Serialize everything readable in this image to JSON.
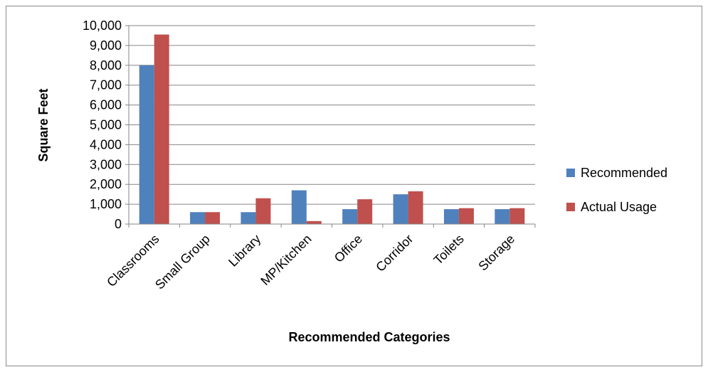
{
  "chart_data": {
    "type": "bar",
    "categories": [
      "Classrooms",
      "Small Group",
      "Library",
      "MP/Kitchen",
      "Office",
      "Corridor",
      "Toilets",
      "Storage"
    ],
    "series": [
      {
        "name": "Recommended",
        "values": [
          8000,
          600,
          600,
          1700,
          750,
          1500,
          750,
          750
        ],
        "color": "#4f81bd"
      },
      {
        "name": "Actual Usage",
        "values": [
          9550,
          600,
          1300,
          150,
          1250,
          1650,
          800,
          800
        ],
        "color": "#c0504d"
      }
    ],
    "title": "",
    "xlabel": "Recommended Categories",
    "ylabel": "Square Feet",
    "ylim": [
      0,
      10000
    ],
    "yticks": [
      "0",
      "1,000",
      "2,000",
      "3,000",
      "4,000",
      "5,000",
      "6,000",
      "7,000",
      "8,000",
      "9,000",
      "10,000"
    ],
    "grid": "horizontal major",
    "legend_position": "right",
    "gridline_color": "#868686"
  }
}
